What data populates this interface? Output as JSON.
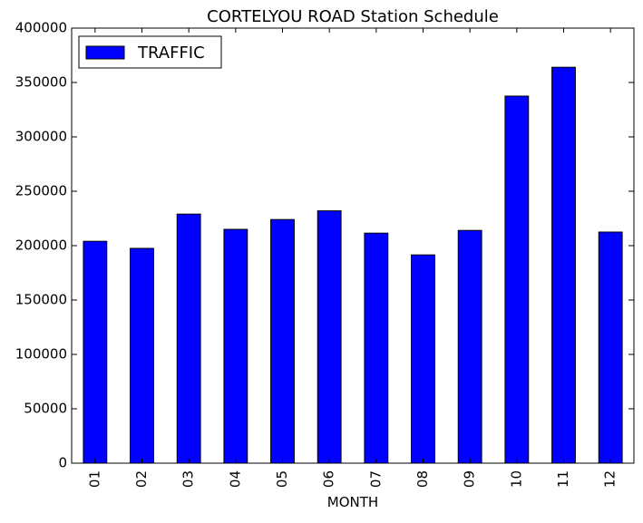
{
  "chart_data": {
    "type": "bar",
    "title": "CORTELYOU ROAD Station Schedule",
    "xlabel": "MONTH",
    "ylabel": "",
    "categories": [
      "01",
      "02",
      "03",
      "04",
      "05",
      "06",
      "07",
      "08",
      "09",
      "10",
      "11",
      "12"
    ],
    "series": [
      {
        "name": "TRAFFIC",
        "color": "#0000ff",
        "values": [
          204000,
          197500,
          229000,
          215000,
          224000,
          232000,
          211500,
          191500,
          214000,
          337500,
          364000,
          212500
        ]
      }
    ],
    "ylim": [
      0,
      400000
    ],
    "yticks": [
      "0",
      "50000",
      "100000",
      "150000",
      "200000",
      "250000",
      "300000",
      "350000",
      "400000"
    ],
    "grid": false,
    "legend": "top-left"
  }
}
